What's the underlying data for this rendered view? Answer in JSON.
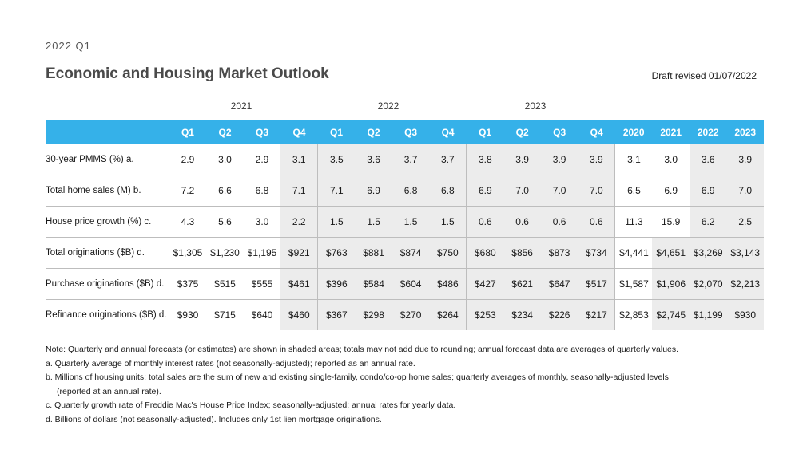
{
  "header": {
    "period": "2022 Q1",
    "title": "Economic and Housing Market Outlook",
    "draft": "Draft revised 01/07/2022"
  },
  "years": [
    "2021",
    "2022",
    "2023"
  ],
  "columns": [
    "Q1",
    "Q2",
    "Q3",
    "Q4",
    "Q1",
    "Q2",
    "Q3",
    "Q4",
    "Q1",
    "Q2",
    "Q3",
    "Q4",
    "2020",
    "2021",
    "2022",
    "2023"
  ],
  "rows": [
    {
      "label": "30-year PMMS (%) a.",
      "values": [
        "2.9",
        "3.0",
        "2.9",
        "3.1",
        "3.5",
        "3.6",
        "3.7",
        "3.7",
        "3.8",
        "3.9",
        "3.9",
        "3.9",
        "3.1",
        "3.0",
        "3.6",
        "3.9"
      ]
    },
    {
      "label": "Total home sales (M) b.",
      "values": [
        "7.2",
        "6.6",
        "6.8",
        "7.1",
        "7.1",
        "6.9",
        "6.8",
        "6.8",
        "6.9",
        "7.0",
        "7.0",
        "7.0",
        "6.5",
        "6.9",
        "6.9",
        "7.0"
      ]
    },
    {
      "label": "House price growth (%) c.",
      "values": [
        "4.3",
        "5.6",
        "3.0",
        "2.2",
        "1.5",
        "1.5",
        "1.5",
        "1.5",
        "0.6",
        "0.6",
        "0.6",
        "0.6",
        "11.3",
        "15.9",
        "6.2",
        "2.5"
      ]
    },
    {
      "label": "Total originations ($B) d.",
      "values": [
        "$1,305",
        "$1,230",
        "$1,195",
        "$921",
        "$763",
        "$881",
        "$874",
        "$750",
        "$680",
        "$856",
        "$873",
        "$734",
        "$4,441",
        "$4,651",
        "$3,269",
        "$3,143"
      ]
    },
    {
      "label": "Purchase originations ($B) d.",
      "values": [
        "$375",
        "$515",
        "$555",
        "$461",
        "$396",
        "$584",
        "$604",
        "$486",
        "$427",
        "$621",
        "$647",
        "$517",
        "$1,587",
        "$1,906",
        "$2,070",
        "$2,213"
      ]
    },
    {
      "label": "Refinance originations ($B) d.",
      "values": [
        "$930",
        "$715",
        "$640",
        "$460",
        "$367",
        "$298",
        "$270",
        "$264",
        "$253",
        "$234",
        "$226",
        "$217",
        "$2,853",
        "$2,745",
        "$1,199",
        "$930"
      ]
    }
  ],
  "notes": [
    "Note: Quarterly and annual forecasts (or estimates) are shown in shaded areas; totals may not add due to rounding; annual forecast data are averages of quarterly values.",
    "a. Quarterly average of monthly interest rates (not seasonally-adjusted); reported as an annual rate.",
    "b. Millions of housing units; total sales are the sum of new and existing single-family, condo/co-op home sales; quarterly averages of monthly, seasonally-adjusted levels",
    "(reported at an annual rate).",
    "c. Quarterly growth rate of Freddie Mac's House Price Index; seasonally-adjusted; annual rates for yearly data.",
    "d. Billions of dollars (not seasonally-adjusted). Includes only 1st lien mortgage originations."
  ]
}
